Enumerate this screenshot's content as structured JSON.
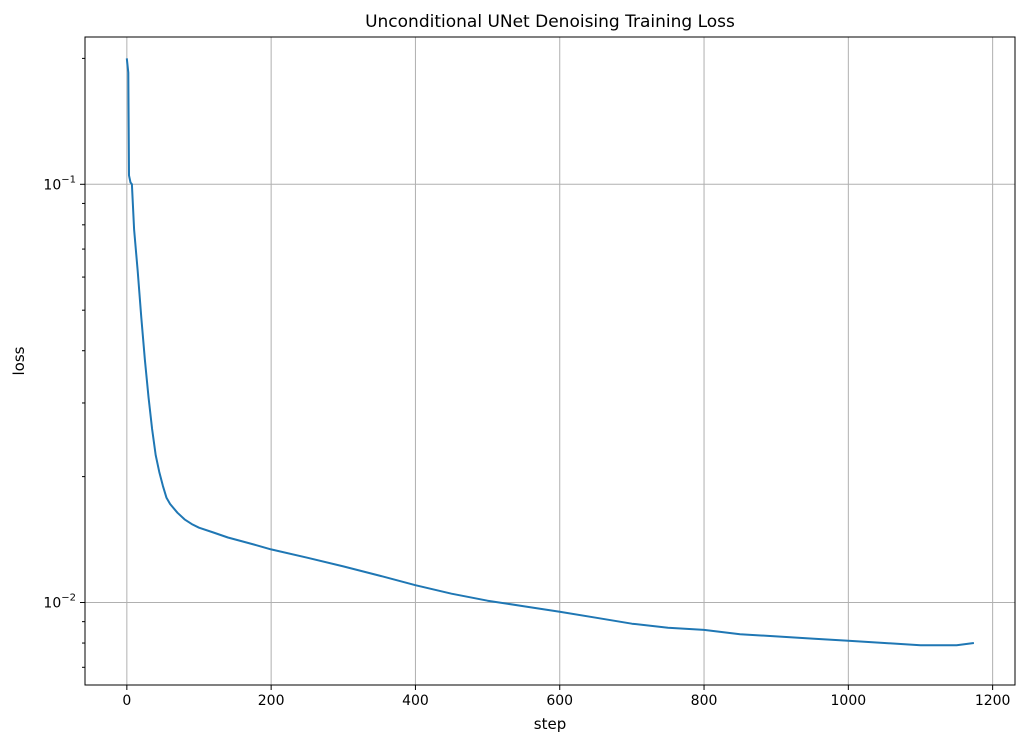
{
  "chart_data": {
    "type": "line",
    "title": "Unconditional UNet Denoising Training Loss",
    "xlabel": "step",
    "ylabel": "loss",
    "yscale": "log",
    "xlim": [
      -58,
      1231
    ],
    "ylim": [
      0.00635,
      0.225
    ],
    "grid": true,
    "x_ticks": [
      0,
      200,
      400,
      600,
      800,
      1000,
      1200
    ],
    "x_tick_labels": [
      "0",
      "200",
      "400",
      "600",
      "800",
      "1000",
      "1200"
    ],
    "y_ticks": [
      {
        "value": 0.1,
        "base": "10",
        "exp": "−1"
      },
      {
        "value": 0.01,
        "base": "10",
        "exp": "−2"
      }
    ],
    "series_color": "#1f77b4",
    "series": [
      {
        "name": "",
        "points": [
          [
            0,
            0.2
          ],
          [
            2,
            0.185
          ],
          [
            3,
            0.105
          ],
          [
            5,
            0.101
          ],
          [
            7,
            0.1
          ],
          [
            10,
            0.078
          ],
          [
            15,
            0.062
          ],
          [
            20,
            0.048
          ],
          [
            25,
            0.038
          ],
          [
            30,
            0.031
          ],
          [
            35,
            0.026
          ],
          [
            40,
            0.0225
          ],
          [
            45,
            0.0205
          ],
          [
            50,
            0.019
          ],
          [
            55,
            0.0178
          ],
          [
            60,
            0.0172
          ],
          [
            70,
            0.0164
          ],
          [
            80,
            0.0158
          ],
          [
            90,
            0.0154
          ],
          [
            100,
            0.0151
          ],
          [
            120,
            0.0147
          ],
          [
            140,
            0.0143
          ],
          [
            160,
            0.014
          ],
          [
            180,
            0.0137
          ],
          [
            200,
            0.0134
          ],
          [
            250,
            0.0128
          ],
          [
            300,
            0.0122
          ],
          [
            350,
            0.0116
          ],
          [
            400,
            0.011
          ],
          [
            450,
            0.0105
          ],
          [
            500,
            0.0101
          ],
          [
            550,
            0.0098
          ],
          [
            600,
            0.0095
          ],
          [
            650,
            0.0092
          ],
          [
            700,
            0.0089
          ],
          [
            750,
            0.0087
          ],
          [
            800,
            0.0086
          ],
          [
            850,
            0.0084
          ],
          [
            900,
            0.0083
          ],
          [
            950,
            0.0082
          ],
          [
            1000,
            0.0081
          ],
          [
            1050,
            0.008
          ],
          [
            1100,
            0.0079
          ],
          [
            1150,
            0.0079
          ],
          [
            1174,
            0.008
          ]
        ]
      }
    ]
  }
}
